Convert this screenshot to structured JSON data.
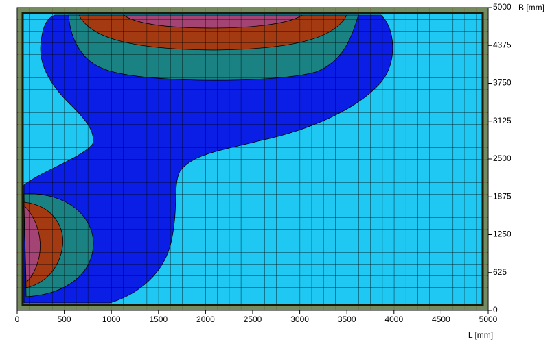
{
  "chart_data": {
    "type": "contour",
    "x_label": "L [mm]",
    "y_label": "B [mm]",
    "xlim": [
      0,
      5000
    ],
    "ylim": [
      0,
      5000
    ],
    "xticks": [
      0,
      500,
      1000,
      1500,
      2000,
      2500,
      3000,
      3500,
      4000,
      4500,
      5000
    ],
    "yticks": [
      0,
      625,
      1250,
      1875,
      2500,
      3125,
      3750,
      4375,
      5000
    ]
  }
}
